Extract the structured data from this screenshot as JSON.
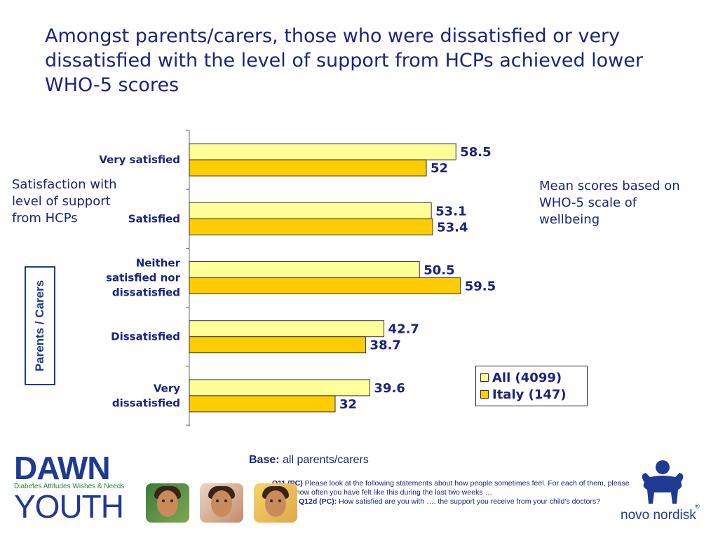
{
  "title": "Amongst parents/carers, those who were dissatisfied or very dissatisfied with the level of support from HCPs achieved lower WHO-5 scores",
  "side_label": "Satisfaction with level of support from HCPs",
  "mean_note": "Mean scores based on WHO-5 scale of wellbeing",
  "group_label": "Parents / Carers",
  "chart_data": {
    "type": "bar",
    "orientation": "horizontal",
    "categories": [
      [
        "Very satisfied"
      ],
      [
        "Satisfied"
      ],
      [
        "Neither",
        "satisfied nor",
        "dissatisfied"
      ],
      [
        "Dissatisfied"
      ],
      [
        "Very",
        "dissatisfied"
      ]
    ],
    "series": [
      {
        "name": "All (4099)",
        "values": [
          58.5,
          53.1,
          50.5,
          42.7,
          39.6
        ],
        "color": "#ffff99"
      },
      {
        "name": "Italy (147)",
        "values": [
          52,
          53.4,
          59.5,
          38.7,
          32
        ],
        "color": "#ffcc00"
      }
    ],
    "xlim": [
      0,
      100
    ],
    "legend_position": "bottom-right"
  },
  "legend": {
    "items": [
      {
        "label": "All (4099)",
        "color": "#ffff99"
      },
      {
        "label": "Italy (147)",
        "color": "#ffcc00"
      }
    ]
  },
  "base": {
    "label": "Base:",
    "text": " all parents/carers"
  },
  "footnotes": [
    {
      "q": "Q11 (PC)",
      "text": " Please look at the following statements about how people sometimes feel. For each of them, please tell me how often you have felt like this during the last two weeks …"
    },
    {
      "q": "Q12d (PC):",
      "text": " How satisfied are you with …. the support you receive from your child’s doctors?"
    }
  ],
  "logos": {
    "dawn_word": "DAWN",
    "dawn_tagline": "Diabetes Attitudes Wishes & Needs",
    "dawn_youth": "YOUTH",
    "novo": "novo nordisk",
    "novo_reg": "®"
  }
}
